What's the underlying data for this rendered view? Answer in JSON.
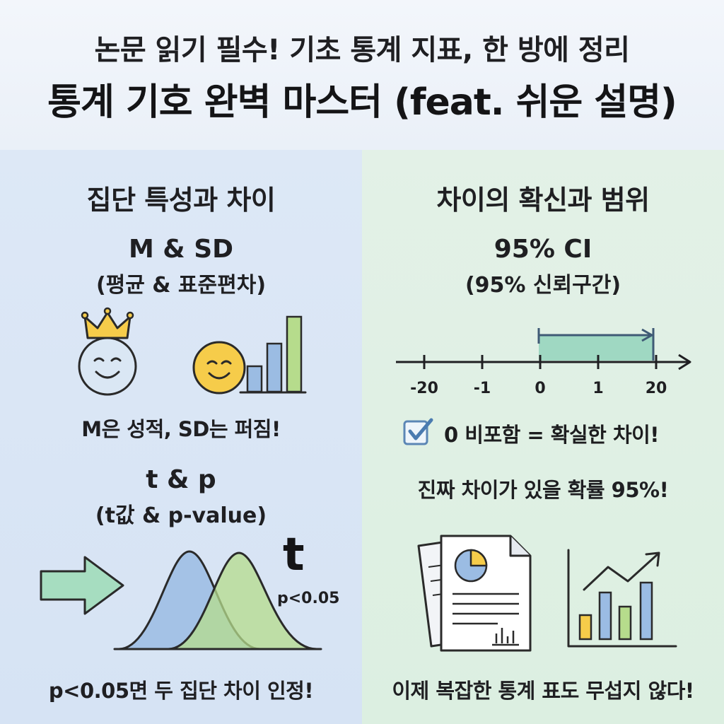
{
  "header": {
    "title_line1": "논문 읽기 필수! 기초 통계 지표, 한 방에 정리",
    "title_line2": "통계 기호 완벽 마스터 (feat. 쉬운 설명)"
  },
  "left": {
    "heading": "집단 특성과 차이",
    "msd_title": "M & SD",
    "msd_subtitle": "(평균 & 표준편차)",
    "msd_note": "M은 성적, SD는 퍼짐!",
    "tp_title": "t & p",
    "tp_subtitle": "(t값 & p-value)",
    "t_symbol": "t",
    "p_label": "p<0.05",
    "tp_note": "p<0.05면 두 집단 차이 인정!"
  },
  "right": {
    "heading": "차이의 확신과 범위",
    "ci_title": "95% CI",
    "ci_subtitle": "(95% 신뢰구간)",
    "axis_ticks": [
      "-20",
      "-1",
      "0",
      "1",
      "20"
    ],
    "ci_interval": [
      0,
      20
    ],
    "check_text": "0 비포함 = 확실한 차이!",
    "prob_text": "진짜 차이가 있을 확률 95%!",
    "bottom_note": "이제 복잡한 통계 표도 무섭지 않다!"
  },
  "icons": {
    "crown": "crown-icon",
    "smiley": "smiley-face-icon",
    "bar_chart": "bar-chart-icon",
    "arrow": "right-arrow-icon",
    "distribution": "normal-distribution-curves-icon",
    "checkbox": "checkbox-checked-icon",
    "report": "report-document-icon",
    "trend_chart": "trend-chart-icon"
  },
  "colors": {
    "blue": "#9bbce3",
    "green": "#b6dc8c",
    "yellow": "#f6cc4a",
    "teal": "#9fd8c2",
    "arrow_green": "#a6ddc0"
  }
}
